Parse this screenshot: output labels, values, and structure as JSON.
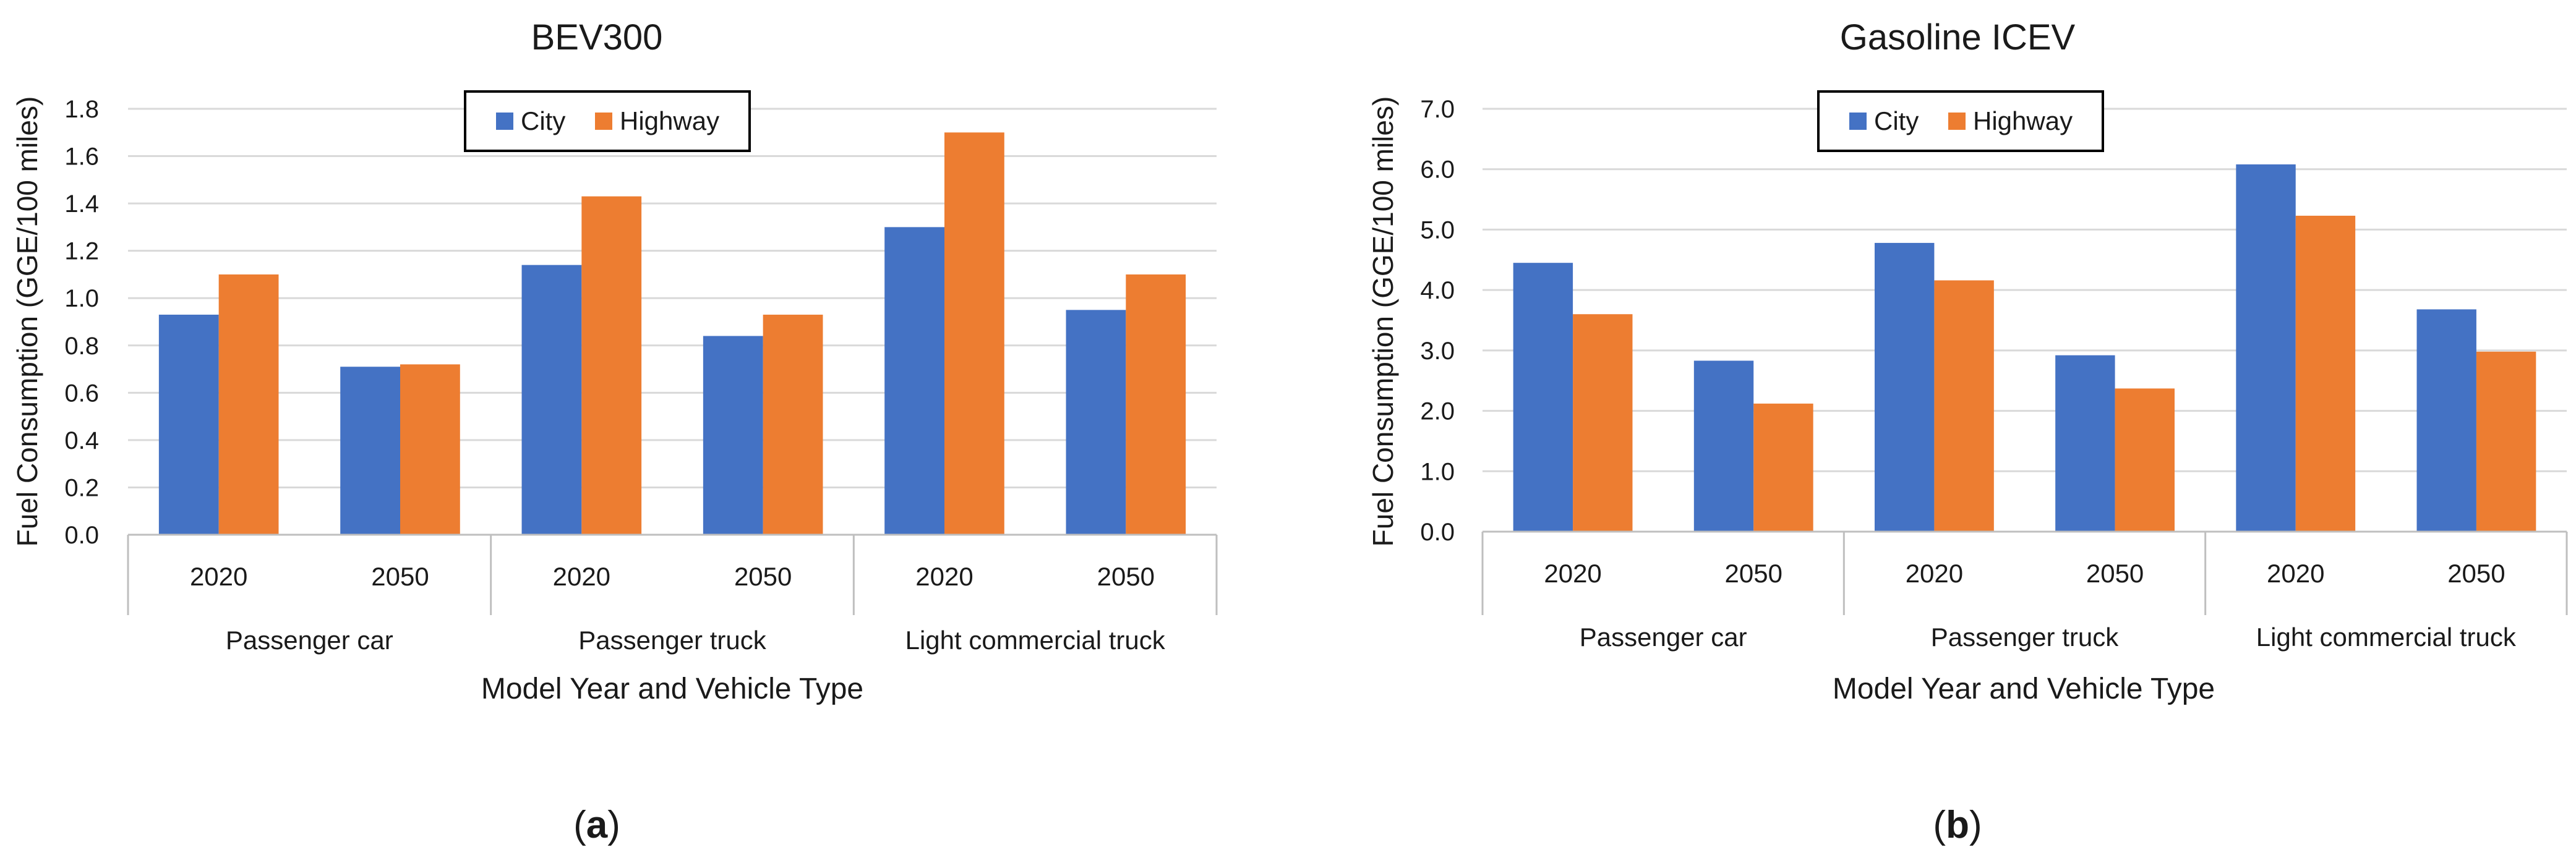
{
  "chart_data": [
    {
      "type": "bar",
      "title": "BEV300",
      "panel_label": "a",
      "xlabel": "Model Year and Vehicle Type",
      "ylabel": "Fuel Consumption (GGE/100 miles)",
      "ylim": [
        0,
        1.8
      ],
      "yticks": [
        "0.0",
        "0.2",
        "0.4",
        "0.6",
        "0.8",
        "1.0",
        "1.2",
        "1.4",
        "1.6",
        "1.8"
      ],
      "grid": true,
      "legend_position": "top-center",
      "groups": [
        "Passenger car",
        "Passenger truck",
        "Light commercial truck"
      ],
      "categories": [
        "2020",
        "2050",
        "2020",
        "2050",
        "2020",
        "2050"
      ],
      "series": [
        {
          "name": "City",
          "color": "#4472C4",
          "values": [
            0.93,
            0.71,
            1.14,
            0.84,
            1.3,
            0.95
          ]
        },
        {
          "name": "Highway",
          "color": "#ED7D31",
          "values": [
            1.1,
            0.72,
            1.43,
            0.93,
            1.7,
            1.1
          ]
        }
      ]
    },
    {
      "type": "bar",
      "title": "Gasoline ICEV",
      "panel_label": "b",
      "xlabel": "Model Year and Vehicle Type",
      "ylabel": "Fuel Consumption (GGE/100 miles)",
      "ylim": [
        0,
        7.0
      ],
      "yticks": [
        "0.0",
        "1.0",
        "2.0",
        "3.0",
        "4.0",
        "5.0",
        "6.0",
        "7.0"
      ],
      "grid": true,
      "legend_position": "top-center",
      "groups": [
        "Passenger car",
        "Passenger truck",
        "Light commercial truck"
      ],
      "categories": [
        "2020",
        "2050",
        "2020",
        "2050",
        "2020",
        "2050"
      ],
      "series": [
        {
          "name": "City",
          "color": "#4472C4",
          "values": [
            4.45,
            2.83,
            4.78,
            2.92,
            6.08,
            3.68
          ]
        },
        {
          "name": "Highway",
          "color": "#ED7D31",
          "values": [
            3.6,
            2.12,
            4.16,
            2.37,
            5.23,
            2.98
          ]
        }
      ]
    }
  ]
}
